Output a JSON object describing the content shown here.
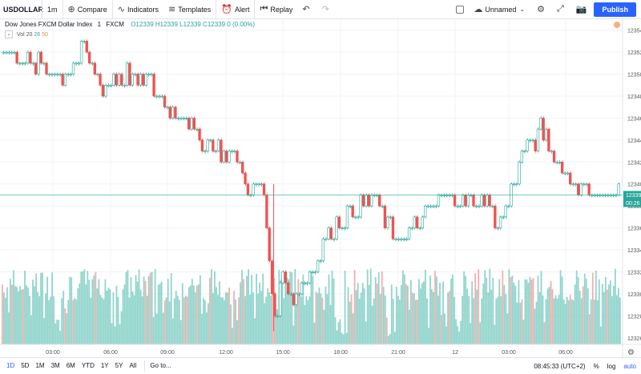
{
  "toolbar": {
    "symbol": "USDOLLAR",
    "interval": "1m",
    "compare": "Compare",
    "indicators": "Indicators",
    "templates": "Templates",
    "alert": "Alert",
    "replay": "Replay",
    "layout_name": "Unnamed",
    "publish": "Publish"
  },
  "legend": {
    "title": "Dow Jones FXCM Dollar Index",
    "interval": "1",
    "source": "FXCM",
    "ohlc": "O12339 H12339 L12339 C12339 0 (0.00%)"
  },
  "volume_legend": {
    "label": "Vol",
    "v1": "20",
    "v2": "26",
    "v3": "50"
  },
  "colors": {
    "up": "#26a69a",
    "down": "#ef5350",
    "accent": "#2962ff",
    "volume_up": "#86d0c6",
    "volume_down": "#f1a7a5"
  },
  "chart_data": {
    "type": "candlestick",
    "y_axis_ticks": [
      12326,
      12328,
      12330,
      12332,
      12334,
      12336,
      12338,
      12340,
      12342,
      12344,
      12346,
      12348,
      12350,
      12352,
      12354
    ],
    "ylim": [
      12325.4,
      12355.0
    ],
    "x_axis_ticks": [
      "03:00",
      "06:00",
      "09:00",
      "12:00",
      "15:00",
      "18:00",
      "21:00",
      "12",
      "03:00",
      "06:00"
    ],
    "last_price": "12339",
    "countdown": "00:26",
    "price_path": [
      [
        0.0,
        12352
      ],
      [
        0.05,
        12351
      ],
      [
        0.1,
        12350
      ],
      [
        0.13,
        12352
      ],
      [
        0.16,
        12349
      ],
      [
        0.2,
        12350
      ],
      [
        0.24,
        12349
      ],
      [
        0.27,
        12347
      ],
      [
        0.3,
        12346
      ],
      [
        0.32,
        12344
      ],
      [
        0.35,
        12343
      ],
      [
        0.38,
        12342
      ],
      [
        0.4,
        12339
      ],
      [
        0.42,
        12340
      ],
      [
        0.44,
        12327
      ],
      [
        0.45,
        12332
      ],
      [
        0.47,
        12330
      ],
      [
        0.49,
        12331
      ],
      [
        0.51,
        12333
      ],
      [
        0.53,
        12336
      ],
      [
        0.55,
        12337
      ],
      [
        0.57,
        12338
      ],
      [
        0.6,
        12339
      ],
      [
        0.62,
        12336
      ],
      [
        0.65,
        12335
      ],
      [
        0.68,
        12337
      ],
      [
        0.71,
        12339
      ],
      [
        0.74,
        12339
      ],
      [
        0.76,
        12338
      ],
      [
        0.78,
        12339
      ],
      [
        0.8,
        12336
      ],
      [
        0.82,
        12339
      ],
      [
        0.84,
        12343
      ],
      [
        0.86,
        12344
      ],
      [
        0.87,
        12345
      ],
      [
        0.88,
        12344
      ],
      [
        0.9,
        12342
      ],
      [
        0.93,
        12340
      ],
      [
        0.96,
        12339
      ],
      [
        1.0,
        12339
      ]
    ],
    "volume_profile": "uniform high activity with gaps at 03:00, 17:30 and 20:45"
  },
  "bottom_bar": {
    "ranges": [
      "1D",
      "5D",
      "1M",
      "3M",
      "6M",
      "YTD",
      "1Y",
      "5Y",
      "All"
    ],
    "goto": "Go to...",
    "clock": "08:45:33 (UTC+2)",
    "percent": "%",
    "log": "log",
    "auto": "auto"
  }
}
